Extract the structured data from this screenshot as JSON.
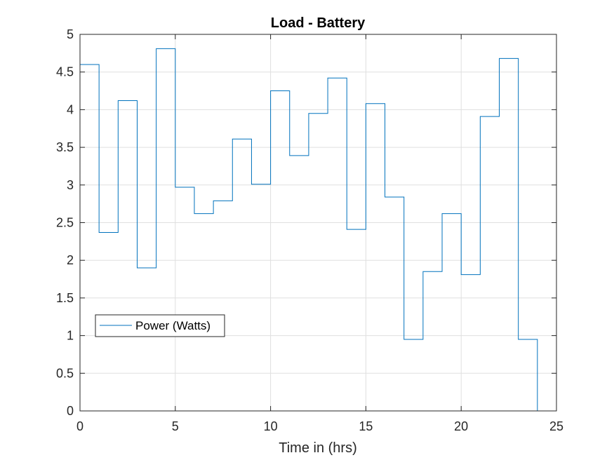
{
  "chart_data": {
    "type": "line",
    "title": "Load - Battery",
    "xlabel": "Time in (hrs)",
    "ylabel": "",
    "xlim": [
      0,
      25
    ],
    "ylim": [
      0,
      5
    ],
    "xticks": [
      0,
      5,
      10,
      15,
      20,
      25
    ],
    "yticks": [
      0,
      0.5,
      1,
      1.5,
      2,
      2.5,
      3,
      3.5,
      4,
      4.5,
      5
    ],
    "xtick_labels": [
      "0",
      "5",
      "10",
      "15",
      "20",
      "25"
    ],
    "ytick_labels": [
      "0",
      "0.5",
      "1",
      "1.5",
      "2",
      "2.5",
      "3",
      "3.5",
      "4",
      "4.5",
      "5"
    ],
    "grid": true,
    "legend_position": "left",
    "step": "post",
    "series": [
      {
        "name": "Power (Watts)",
        "color": "#0072BD",
        "x": [
          0,
          1,
          2,
          3,
          4,
          5,
          6,
          7,
          8,
          9,
          10,
          11,
          12,
          13,
          14,
          15,
          16,
          17,
          18,
          19,
          20,
          21,
          22,
          23,
          24
        ],
        "values": [
          4.6,
          2.37,
          4.12,
          1.9,
          4.81,
          2.97,
          2.62,
          2.79,
          3.61,
          3.01,
          4.25,
          3.39,
          3.95,
          4.42,
          2.41,
          4.08,
          2.84,
          0.95,
          1.85,
          2.62,
          1.81,
          3.91,
          4.68,
          0.95,
          0
        ]
      }
    ]
  }
}
